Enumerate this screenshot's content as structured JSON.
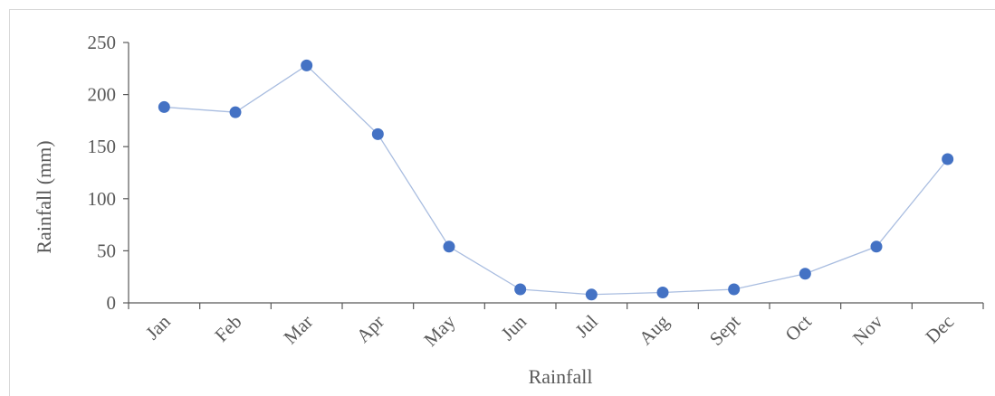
{
  "chart_data": {
    "type": "line",
    "categories": [
      "Jan",
      "Feb",
      "Mar",
      "Apr",
      "May",
      "Jun",
      "Jul",
      "Aug",
      "Sept",
      "Oct",
      "Nov",
      "Dec"
    ],
    "series": [
      {
        "values": [
          188,
          183,
          228,
          162,
          54,
          13,
          8,
          10,
          13,
          28,
          54,
          138
        ]
      }
    ],
    "xlabel": "Rainfall",
    "ylabel": "Rainfall (mm)",
    "ylim": [
      0,
      250
    ],
    "yticks": [
      "0",
      "50",
      "100",
      "150",
      "200",
      "250"
    ],
    "grid": false,
    "legend": "none",
    "colors": {
      "line": "#a9bde0",
      "marker": "#4472c4",
      "axis": "#595959"
    }
  }
}
